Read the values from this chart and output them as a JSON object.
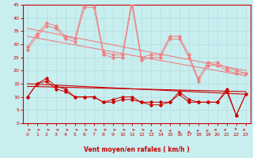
{
  "xlabel": "Vent moyen/en rafales ( km/h )",
  "xlim": [
    -0.5,
    23.5
  ],
  "ylim": [
    0,
    45
  ],
  "yticks": [
    0,
    5,
    10,
    15,
    20,
    25,
    30,
    35,
    40,
    45
  ],
  "xticks": [
    0,
    1,
    2,
    3,
    4,
    5,
    6,
    7,
    8,
    9,
    10,
    11,
    12,
    13,
    14,
    15,
    16,
    17,
    18,
    19,
    20,
    21,
    22,
    23
  ],
  "bg_color": "#c8eef0",
  "grid_color": "#b0dede",
  "line_color_light": "#f08080",
  "line_color_dark": "#cc0000",
  "hours": [
    0,
    1,
    2,
    3,
    4,
    5,
    6,
    7,
    8,
    9,
    10,
    11,
    12,
    13,
    14,
    15,
    16,
    17,
    18,
    19,
    20,
    21,
    22,
    23
  ],
  "rafales": [
    29,
    34,
    38,
    37,
    33,
    32,
    46,
    46,
    27,
    26,
    26,
    47,
    25,
    26,
    26,
    33,
    33,
    26,
    17,
    23,
    23,
    21,
    20,
    19
  ],
  "rafales2": [
    28,
    33,
    37,
    36,
    32,
    31,
    44,
    44,
    26,
    25,
    25,
    45,
    24,
    25,
    25,
    32,
    32,
    25,
    16,
    22,
    22,
    20,
    19,
    19
  ],
  "moyen": [
    10,
    15,
    17,
    14,
    13,
    10,
    10,
    10,
    8,
    9,
    10,
    10,
    8,
    8,
    8,
    8,
    12,
    9,
    8,
    8,
    8,
    13,
    3,
    11
  ],
  "moyen2": [
    10,
    15,
    16,
    13,
    12,
    10,
    10,
    10,
    8,
    8,
    9,
    9,
    8,
    7,
    7,
    8,
    11,
    8,
    8,
    8,
    8,
    12,
    3,
    11
  ],
  "trend_light_1": [
    36,
    20
  ],
  "trend_light_2": [
    33,
    18
  ],
  "trend_dark_1": [
    15,
    11
  ],
  "trend_dark_2": [
    14,
    12
  ],
  "wind_dirs": [
    90,
    90,
    90,
    90,
    90,
    90,
    90,
    90,
    90,
    90,
    90,
    90,
    90,
    135,
    135,
    135,
    180,
    180,
    225,
    225,
    270,
    270,
    315,
    270
  ],
  "axis_color": "#cc0000",
  "tick_color": "#cc0000",
  "label_color": "#cc0000"
}
